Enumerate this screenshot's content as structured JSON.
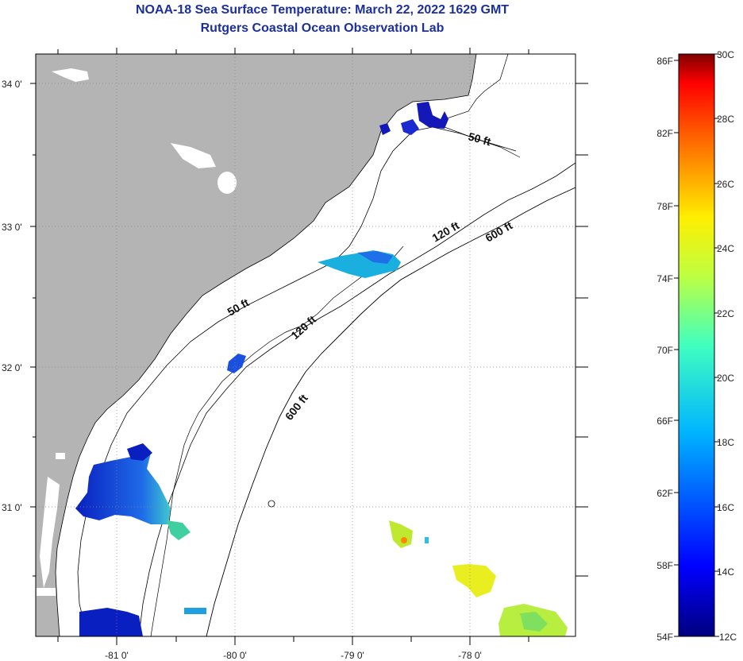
{
  "title": {
    "line1": "NOAA-18 Sea Surface Temperature:  March 22, 2022 1629 GMT",
    "line2": "Rutgers Coastal Ocean Observation Lab"
  },
  "map": {
    "lat_labels": [
      "34 0'",
      "33 0'",
      "32 0'",
      "31 0'"
    ],
    "lon_labels": [
      "-81 0'",
      "-80 0'",
      "-79 0'",
      "-78 0'"
    ],
    "isobaths": [
      "50 ft",
      "120 ft",
      "600 ft",
      "50 ft",
      "120 ft",
      "600 ft"
    ],
    "colors": {
      "land": "#b4b4b4",
      "ocean": "#ffffff",
      "grid": "#888888"
    }
  },
  "colorbar": {
    "f_labels": [
      "86F",
      "82F",
      "78F",
      "74F",
      "70F",
      "66F",
      "62F",
      "58F",
      "54F"
    ],
    "c_labels": [
      "30C",
      "28C",
      "26C",
      "24C",
      "22C",
      "20C",
      "18C",
      "16C",
      "14C",
      "12C"
    ]
  }
}
